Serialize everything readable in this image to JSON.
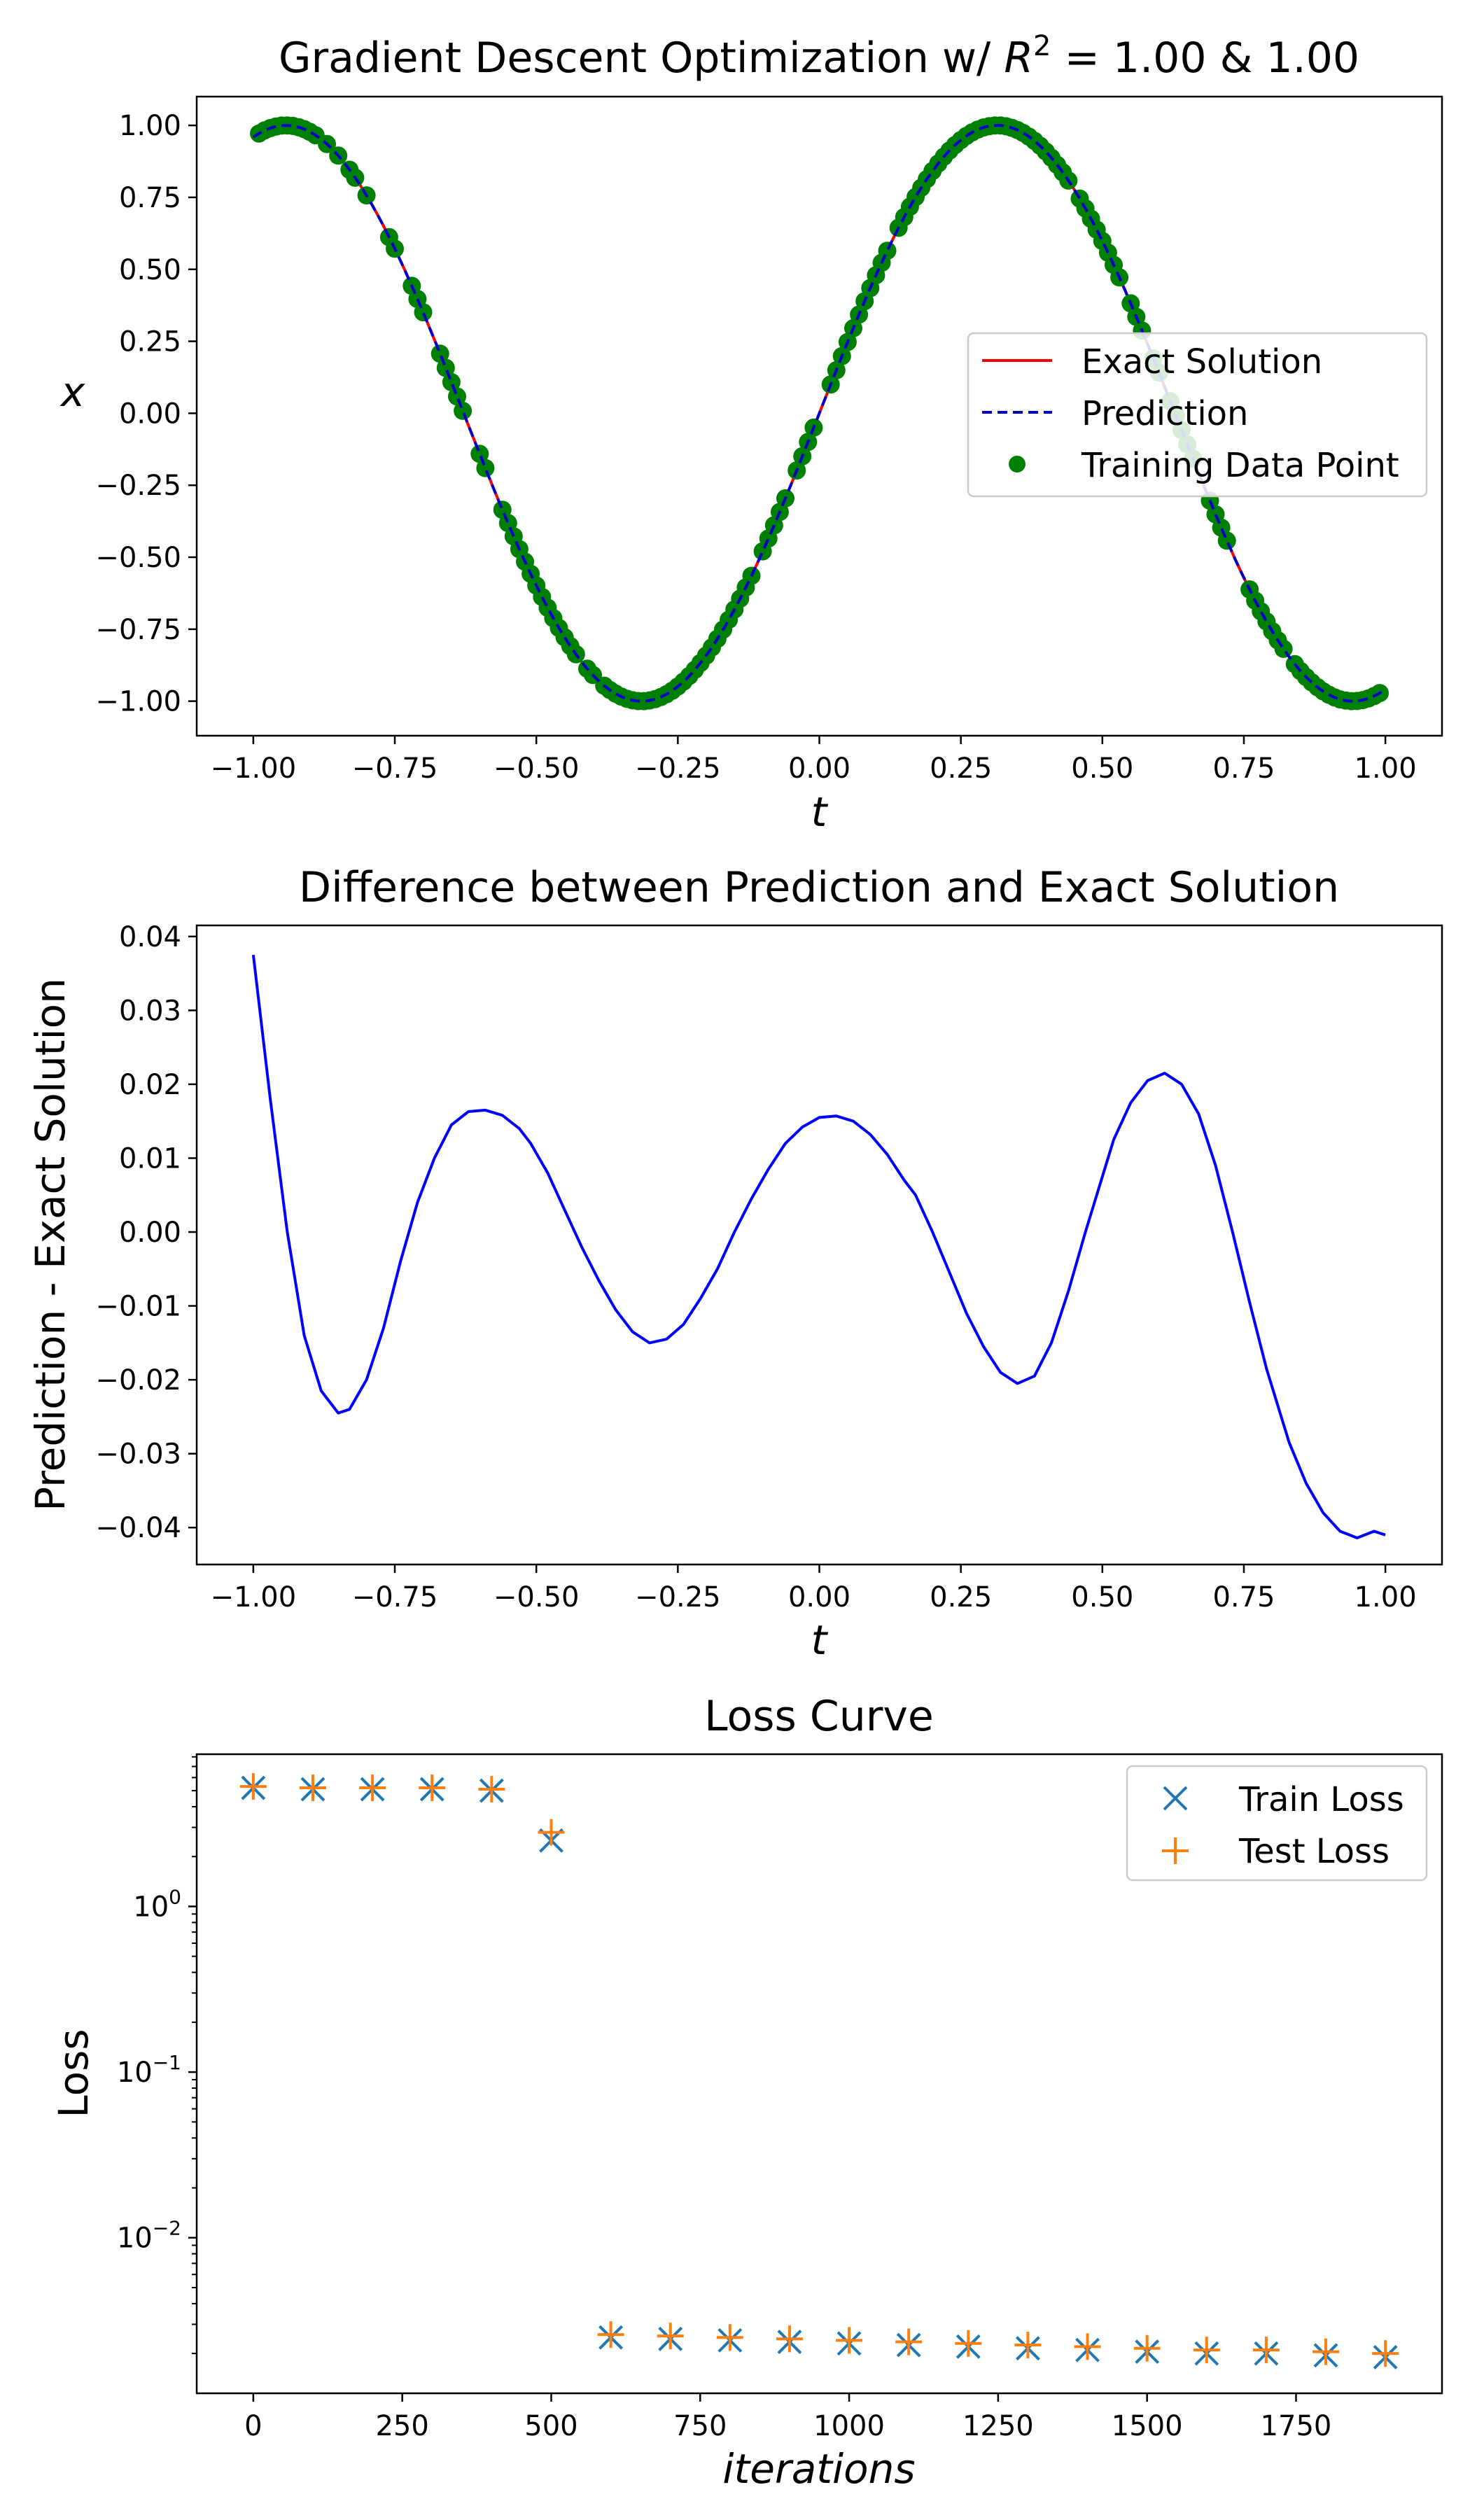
{
  "chart_data": [
    {
      "type": "line",
      "title_prefix": "Gradient Descent Optimization w/ ",
      "title_r": "R",
      "title_sup": "2",
      "title_suffix": " = 1.00 & 1.00",
      "xlabel": "t",
      "ylabel": "x",
      "xlim": [
        -1.1,
        1.1
      ],
      "ylim": [
        -1.12,
        1.1
      ],
      "xticks": [
        -1.0,
        -0.75,
        -0.5,
        -0.25,
        0.0,
        0.25,
        0.5,
        0.75,
        1.0
      ],
      "xtick_labels": [
        "−1.00",
        "−0.75",
        "−0.50",
        "−0.25",
        "0.00",
        "0.25",
        "0.50",
        "0.75",
        "1.00"
      ],
      "yticks": [
        1.0,
        0.75,
        0.5,
        0.25,
        0.0,
        -0.25,
        -0.5,
        -0.75,
        -1.0
      ],
      "ytick_labels": [
        "1.00",
        "0.75",
        "0.50",
        "0.25",
        "0.00",
        "−0.25",
        "−0.50",
        "−0.75",
        "−1.00"
      ],
      "function": "x = sin(5t)",
      "t_range": [
        -1,
        1
      ],
      "series": [
        {
          "name": "Exact Solution",
          "style": "solid",
          "color": "#ff0000"
        },
        {
          "name": "Prediction",
          "style": "dashed",
          "color": "#0000cc"
        },
        {
          "name": "Training Data Point",
          "style": "markers",
          "color": "#008000"
        }
      ],
      "training_t": [
        -0.99,
        -0.98,
        -0.97,
        -0.96,
        -0.95,
        -0.94,
        -0.93,
        -0.92,
        -0.91,
        -0.9,
        -0.89,
        -0.87,
        -0.85,
        -0.83,
        -0.82,
        -0.8,
        -0.76,
        -0.75,
        -0.72,
        -0.71,
        -0.7,
        -0.67,
        -0.66,
        -0.65,
        -0.64,
        -0.63,
        -0.6,
        -0.59,
        -0.56,
        -0.55,
        -0.54,
        -0.53,
        -0.52,
        -0.51,
        -0.5,
        -0.49,
        -0.48,
        -0.47,
        -0.46,
        -0.45,
        -0.44,
        -0.43,
        -0.41,
        -0.4,
        -0.38,
        -0.37,
        -0.36,
        -0.35,
        -0.34,
        -0.33,
        -0.32,
        -0.31,
        -0.3,
        -0.29,
        -0.28,
        -0.27,
        -0.26,
        -0.25,
        -0.24,
        -0.23,
        -0.22,
        -0.21,
        -0.2,
        -0.19,
        -0.18,
        -0.17,
        -0.16,
        -0.15,
        -0.14,
        -0.13,
        -0.12,
        -0.1,
        -0.09,
        -0.08,
        -0.07,
        -0.06,
        -0.04,
        -0.03,
        -0.02,
        -0.01,
        0.02,
        0.03,
        0.04,
        0.05,
        0.06,
        0.07,
        0.08,
        0.09,
        0.1,
        0.11,
        0.12,
        0.14,
        0.15,
        0.16,
        0.17,
        0.18,
        0.19,
        0.2,
        0.21,
        0.22,
        0.23,
        0.24,
        0.25,
        0.26,
        0.27,
        0.28,
        0.29,
        0.3,
        0.31,
        0.32,
        0.33,
        0.34,
        0.35,
        0.36,
        0.37,
        0.38,
        0.39,
        0.4,
        0.41,
        0.42,
        0.43,
        0.44,
        0.46,
        0.47,
        0.48,
        0.49,
        0.5,
        0.51,
        0.52,
        0.53,
        0.55,
        0.56,
        0.57,
        0.59,
        0.6,
        0.62,
        0.63,
        0.64,
        0.65,
        0.66,
        0.69,
        0.7,
        0.71,
        0.72,
        0.76,
        0.77,
        0.78,
        0.79,
        0.8,
        0.81,
        0.82,
        0.84,
        0.85,
        0.86,
        0.87,
        0.88,
        0.89,
        0.9,
        0.91,
        0.92,
        0.93,
        0.94,
        0.95,
        0.96,
        0.97,
        0.98,
        0.99
      ]
    },
    {
      "type": "line",
      "title": "Difference between Prediction and Exact Solution",
      "xlabel": "t",
      "ylabel": "Prediction - Exact Solution",
      "xlim": [
        -1.1,
        1.1
      ],
      "ylim": [
        -0.045,
        0.0415
      ],
      "xticks": [
        -1.0,
        -0.75,
        -0.5,
        -0.25,
        0.0,
        0.25,
        0.5,
        0.75,
        1.0
      ],
      "xtick_labels": [
        "−1.00",
        "−0.75",
        "−0.50",
        "−0.25",
        "0.00",
        "0.25",
        "0.50",
        "0.75",
        "1.00"
      ],
      "yticks": [
        0.04,
        0.03,
        0.02,
        0.01,
        0.0,
        -0.01,
        -0.02,
        -0.03,
        -0.04
      ],
      "ytick_labels": [
        "0.04",
        "0.03",
        "0.02",
        "0.01",
        "0.00",
        "−0.01",
        "−0.02",
        "−0.03",
        "−0.04"
      ],
      "color": "#0000ff",
      "x": [
        -1.0,
        -0.97,
        -0.94,
        -0.91,
        -0.88,
        -0.85,
        -0.83,
        -0.8,
        -0.77,
        -0.74,
        -0.71,
        -0.68,
        -0.65,
        -0.62,
        -0.59,
        -0.56,
        -0.53,
        -0.51,
        -0.48,
        -0.45,
        -0.42,
        -0.39,
        -0.36,
        -0.33,
        -0.3,
        -0.27,
        -0.24,
        -0.21,
        -0.18,
        -0.15,
        -0.12,
        -0.09,
        -0.06,
        -0.03,
        0.0,
        0.03,
        0.06,
        0.09,
        0.12,
        0.15,
        0.17,
        0.2,
        0.23,
        0.26,
        0.29,
        0.32,
        0.35,
        0.38,
        0.41,
        0.44,
        0.47,
        0.5,
        0.52,
        0.55,
        0.58,
        0.61,
        0.64,
        0.67,
        0.7,
        0.73,
        0.76,
        0.79,
        0.82,
        0.83,
        0.86,
        0.89,
        0.92,
        0.95,
        0.98,
        1.0
      ],
      "y": [
        0.0375,
        0.018,
        0.0,
        -0.014,
        -0.0215,
        -0.0245,
        -0.024,
        -0.02,
        -0.013,
        -0.004,
        0.004,
        0.01,
        0.0145,
        0.0163,
        0.0165,
        0.0158,
        0.014,
        0.012,
        0.008,
        0.003,
        -0.002,
        -0.0065,
        -0.0105,
        -0.0135,
        -0.015,
        -0.0145,
        -0.0125,
        -0.009,
        -0.005,
        0.0,
        0.0045,
        0.0085,
        0.012,
        0.0142,
        0.0155,
        0.0157,
        0.015,
        0.0132,
        0.0105,
        0.007,
        0.005,
        0.0,
        -0.0055,
        -0.011,
        -0.0155,
        -0.019,
        -0.0205,
        -0.0195,
        -0.015,
        -0.008,
        0.0,
        0.0075,
        0.0125,
        0.0175,
        0.0205,
        0.0215,
        0.02,
        0.016,
        0.009,
        0.0,
        -0.0095,
        -0.0185,
        -0.026,
        -0.0285,
        -0.034,
        -0.038,
        -0.0405,
        -0.0414,
        -0.0405,
        -0.041
      ]
    },
    {
      "type": "scatter",
      "title": "Loss Curve",
      "xlabel": "iterations",
      "ylabel": "Loss",
      "xlim": [
        -95,
        1995
      ],
      "yscale": "log",
      "ylim": [
        0.00115,
        8.3
      ],
      "xticks": [
        0,
        250,
        500,
        750,
        1000,
        1250,
        1500,
        1750
      ],
      "xtick_labels": [
        "0",
        "250",
        "500",
        "750",
        "1000",
        "1250",
        "1500",
        "1750"
      ],
      "yticks_major": [
        1,
        0.1,
        0.01
      ],
      "ytick_bases": [
        "10",
        "10",
        "10"
      ],
      "ytick_exps": [
        "0",
        "−1",
        "−2"
      ],
      "x": [
        0,
        100,
        200,
        300,
        400,
        500,
        600,
        700,
        800,
        900,
        1000,
        1100,
        1200,
        1300,
        1400,
        1500,
        1600,
        1700,
        1800,
        1900
      ],
      "series": [
        {
          "name": "Train Loss",
          "marker": "x",
          "color": "#1f77b4",
          "values": [
            5.2,
            5.1,
            5.1,
            5.1,
            5.0,
            2.5,
            0.0025,
            0.00245,
            0.0024,
            0.00235,
            0.0023,
            0.00225,
            0.0022,
            0.00215,
            0.0021,
            0.00205,
            0.002,
            0.002,
            0.00195,
            0.0019
          ]
        },
        {
          "name": "Test Loss",
          "marker": "+",
          "color": "#ff7f0e",
          "values": [
            5.3,
            5.2,
            5.2,
            5.2,
            5.1,
            2.8,
            0.0026,
            0.00255,
            0.0025,
            0.00245,
            0.0024,
            0.00235,
            0.0023,
            0.00225,
            0.0022,
            0.00215,
            0.0021,
            0.0021,
            0.00205,
            0.002
          ]
        }
      ]
    }
  ]
}
